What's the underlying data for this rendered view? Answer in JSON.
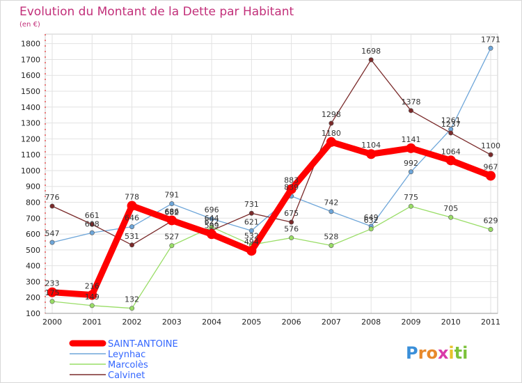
{
  "chart_data": {
    "type": "line",
    "title": "Evolution du Montant de la Dette par Habitant",
    "subtitle": "(en €)",
    "x": [
      "2000",
      "2001",
      "2002",
      "2003",
      "2004",
      "2005",
      "2006",
      "2007",
      "2008",
      "2009",
      "2010",
      "2011"
    ],
    "y_ticks": [
      "100",
      "200",
      "300",
      "400",
      "500",
      "600",
      "700",
      "800",
      "900",
      "1000",
      "1100",
      "1200",
      "1300",
      "1400",
      "1500",
      "1600",
      "1700",
      "1800"
    ],
    "ylim": [
      100,
      1800
    ],
    "grid": true,
    "legend_position": "bottom-left",
    "series": [
      {
        "name": "SAINT-ANTOINE",
        "color": "#ff0000",
        "values": [
          233,
          216,
          778,
          686,
          599,
          494,
          883,
          1180,
          1104,
          1141,
          1064,
          967
        ]
      },
      {
        "name": "Leynhac",
        "color": "#6ea6d9",
        "values": [
          547,
          608,
          646,
          791,
          696,
          621,
          839,
          742,
          649,
          992,
          1261,
          1771
        ]
      },
      {
        "name": "Marcolès",
        "color": "#99dd66",
        "values": [
          175,
          149,
          132,
          527,
          644,
          532,
          576,
          528,
          632,
          775,
          705,
          629
        ]
      },
      {
        "name": "Calvinet",
        "color": "#7a2a2a",
        "values": [
          776,
          661,
          531,
          682,
          622,
          731,
          675,
          1298,
          1698,
          1378,
          1237,
          1100
        ]
      }
    ]
  },
  "legend": {
    "items": [
      {
        "label": "SAINT-ANTOINE",
        "color": "#ff0000",
        "text_color": "#3366ff"
      },
      {
        "label": "Leynhac",
        "color": "#6ea6d9",
        "text_color": "#3366ff"
      },
      {
        "label": "Marcolès",
        "color": "#99dd66",
        "text_color": "#3366ff"
      },
      {
        "label": "Calvinet",
        "color": "#7a2a2a",
        "text_color": "#3366ff"
      }
    ]
  },
  "logo": {
    "letters": [
      "P",
      "r",
      "o",
      "x",
      "i",
      "t",
      "i"
    ],
    "colors": [
      "#3a8fd9",
      "#e8892b",
      "#e8892b",
      "#d93aa8",
      "#e8c22b",
      "#7cc23a",
      "#7cc23a"
    ]
  }
}
